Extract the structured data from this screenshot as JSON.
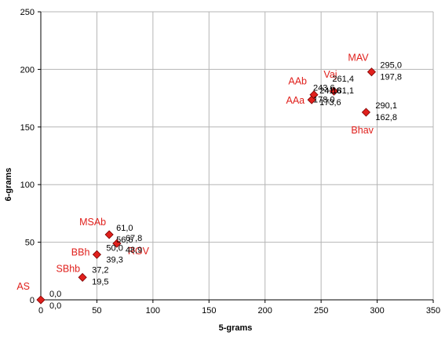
{
  "chart_data": {
    "type": "scatter",
    "title": "",
    "xlabel": "5-grams",
    "ylabel": "6-grams",
    "xlim": [
      0,
      350
    ],
    "ylim": [
      0,
      250
    ],
    "xticks": [
      0,
      50,
      100,
      150,
      200,
      250,
      300,
      350
    ],
    "yticks": [
      0,
      50,
      100,
      150,
      200,
      250
    ],
    "grid": true,
    "legend": "none",
    "marker": "diamond",
    "marker_color": "#e0201c",
    "label_color": "#e0201c",
    "points": [
      {
        "name": "AS",
        "x": 0.0,
        "y": 0.0,
        "x_text": "0,0",
        "y_text": "0,0"
      },
      {
        "name": "SBhb",
        "x": 37.2,
        "y": 19.5,
        "x_text": "37,2",
        "y_text": "19,5"
      },
      {
        "name": "BBh",
        "x": 50.0,
        "y": 39.3,
        "x_text": "50,0",
        "y_text": "39,3"
      },
      {
        "name": "MSAb",
        "x": 61.0,
        "y": 56.6,
        "x_text": "61,0",
        "y_text": "56,6"
      },
      {
        "name": "RGV",
        "x": 67.8,
        "y": 48.9,
        "x_text": "67,8",
        "y_text": "48,9"
      },
      {
        "name": "AAa",
        "x": 241.6,
        "y": 173.6,
        "x_text": "241,6",
        "y_text": "173,6"
      },
      {
        "name": "AAb",
        "x": 243.6,
        "y": 178.0,
        "x_text": "243,6",
        "y_text": "178,0"
      },
      {
        "name": "Vaj",
        "x": 261.4,
        "y": 181.1,
        "x_text": "261,4",
        "y_text": "181,1"
      },
      {
        "name": "Bhav",
        "x": 290.1,
        "y": 162.8,
        "x_text": "290,1",
        "y_text": "162,8"
      },
      {
        "name": "MAV",
        "x": 295.0,
        "y": 197.8,
        "x_text": "295,0",
        "y_text": "197,8"
      }
    ]
  }
}
